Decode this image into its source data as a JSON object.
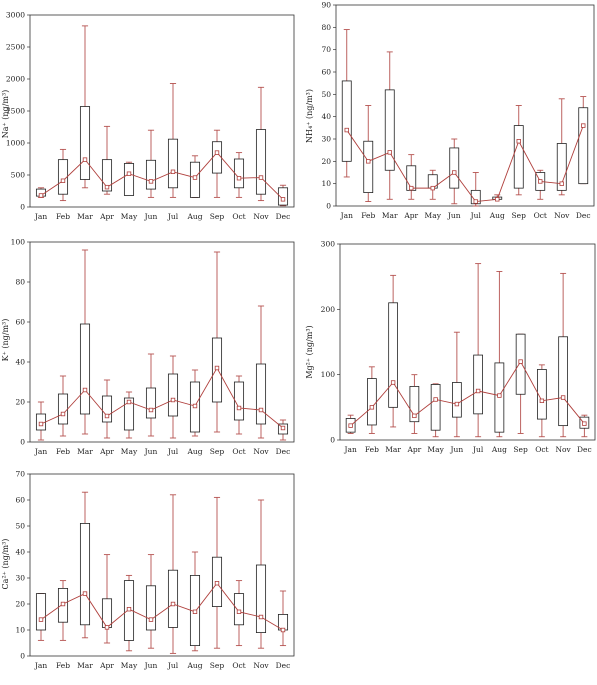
{
  "colors": {
    "whisker": "#b5524f",
    "box": "#222222",
    "mean_line": "#b0403d",
    "frame": "#333333"
  },
  "chart_data": [
    {
      "type": "box",
      "ylabel": "Na⁺ (ng/m³)",
      "categories": [
        "Jan",
        "Feb",
        "Mar",
        "Apr",
        "May",
        "Jun",
        "Jul",
        "Aug",
        "Sep",
        "Oct",
        "Nov",
        "Dec"
      ],
      "ylim": [
        0,
        3000
      ],
      "yticks": [
        "0",
        "500",
        "1000",
        "1500",
        "2000",
        "2500",
        "3000"
      ],
      "yticks_values": [
        0,
        500,
        1000,
        1500,
        2000,
        2500,
        3000
      ],
      "min": [
        150,
        100,
        300,
        200,
        200,
        150,
        150,
        150,
        150,
        150,
        100,
        20
      ],
      "q1": [
        170,
        200,
        430,
        250,
        180,
        280,
        300,
        150,
        530,
        300,
        200,
        30
      ],
      "q3": [
        280,
        740,
        1570,
        740,
        680,
        730,
        1060,
        700,
        1020,
        750,
        1210,
        300
      ],
      "max": [
        300,
        900,
        2830,
        1260,
        700,
        1200,
        1930,
        800,
        1200,
        850,
        1870,
        340
      ],
      "mean": [
        180,
        410,
        740,
        310,
        520,
        400,
        550,
        460,
        850,
        450,
        460,
        120
      ]
    },
    {
      "type": "box",
      "ylabel": "NH₄⁺ (ng/m³)",
      "categories": [
        "Jan",
        "Feb",
        "Mar",
        "Apr",
        "May",
        "Jun",
        "Jul",
        "Aug",
        "Sep",
        "Oct",
        "Nov",
        "Dec"
      ],
      "ylim": [
        0,
        90
      ],
      "yticks": [
        "0",
        "10",
        "20",
        "30",
        "40",
        "50",
        "60",
        "70",
        "80",
        "90"
      ],
      "yticks_values": [
        0,
        10,
        20,
        30,
        40,
        50,
        60,
        70,
        80,
        90
      ],
      "min": [
        13,
        2,
        3,
        3,
        3,
        1,
        0,
        3,
        5,
        3,
        5,
        10
      ],
      "q1": [
        20,
        6,
        16,
        7,
        8,
        8,
        1,
        3,
        8,
        7,
        7,
        10
      ],
      "q3": [
        56,
        29,
        52,
        18,
        14,
        26,
        7,
        4,
        36,
        15,
        28,
        44
      ],
      "max": [
        79,
        45,
        69,
        23,
        16,
        30,
        15,
        5,
        45,
        16,
        48,
        49
      ],
      "mean": [
        34,
        20,
        24,
        8,
        8,
        15,
        2,
        3,
        29,
        11,
        10,
        36
      ]
    },
    {
      "type": "box",
      "ylabel": "K⁺ (ng/m³)",
      "categories": [
        "Jan",
        "Feb",
        "Mar",
        "Apr",
        "May",
        "Jun",
        "Jul",
        "Aug",
        "Sep",
        "Oct",
        "Nov",
        "Dec"
      ],
      "ylim": [
        0,
        100
      ],
      "yticks": [
        "0",
        "20",
        "40",
        "60",
        "80",
        "100"
      ],
      "yticks_values": [
        0,
        20,
        40,
        60,
        80,
        100
      ],
      "min": [
        1,
        3,
        4,
        2,
        2,
        3,
        2,
        3,
        5,
        4,
        2,
        1
      ],
      "q1": [
        6,
        9,
        14,
        10,
        6,
        12,
        13,
        5,
        20,
        11,
        9,
        4
      ],
      "q3": [
        14,
        24,
        59,
        23,
        22,
        27,
        34,
        30,
        52,
        30,
        39,
        9
      ],
      "max": [
        20,
        33,
        96,
        31,
        25,
        44,
        43,
        36,
        95,
        33,
        68,
        11
      ],
      "mean": [
        9,
        14,
        26,
        13,
        20,
        16,
        21,
        18,
        37,
        17,
        16,
        7
      ]
    },
    {
      "type": "box",
      "ylabel": "Mg²⁺ (ng/m³)",
      "categories": [
        "Jan",
        "Feb",
        "Mar",
        "Apr",
        "May",
        "Jun",
        "Jul",
        "Aug",
        "Sep",
        "Oct",
        "Nov",
        "Dec"
      ],
      "ylim": [
        0,
        300
      ],
      "yticks": [
        "0",
        "100",
        "200",
        "300"
      ],
      "yticks_values": [
        0,
        100,
        200,
        300
      ],
      "min": [
        10,
        10,
        20,
        10,
        5,
        5,
        5,
        5,
        10,
        5,
        5,
        5
      ],
      "q1": [
        12,
        23,
        50,
        28,
        15,
        35,
        40,
        12,
        70,
        32,
        22,
        18
      ],
      "q3": [
        33,
        94,
        210,
        82,
        85,
        88,
        130,
        118,
        162,
        108,
        158,
        35
      ],
      "max": [
        38,
        112,
        252,
        100,
        86,
        165,
        270,
        258,
        162,
        115,
        255,
        38
      ],
      "mean": [
        22,
        50,
        88,
        37,
        62,
        55,
        75,
        68,
        120,
        60,
        65,
        25
      ]
    },
    {
      "type": "box",
      "ylabel": "Ca²⁺ (ng/m³)",
      "categories": [
        "Jan",
        "Feb",
        "Mar",
        "Apr",
        "May",
        "Jun",
        "Jul",
        "Aug",
        "Sep",
        "Oct",
        "Nov",
        "Dec"
      ],
      "ylim": [
        0,
        70
      ],
      "yticks": [
        "0",
        "10",
        "20",
        "30",
        "40",
        "50",
        "60",
        "70"
      ],
      "yticks_values": [
        0,
        10,
        20,
        30,
        40,
        50,
        60,
        70
      ],
      "min": [
        6,
        6,
        7,
        5,
        2,
        3,
        1,
        2,
        3,
        4,
        3,
        4
      ],
      "q1": [
        10,
        13,
        12,
        11,
        6,
        10,
        11,
        4,
        19,
        12,
        9,
        10
      ],
      "q3": [
        24,
        26,
        51,
        22,
        29,
        27,
        33,
        31,
        38,
        24,
        35,
        16
      ],
      "max": [
        24,
        29,
        63,
        39,
        31,
        39,
        62,
        40,
        61,
        29,
        60,
        25
      ],
      "mean": [
        14,
        20,
        24,
        11,
        18,
        14,
        20,
        17,
        28,
        17,
        15,
        10
      ]
    }
  ]
}
